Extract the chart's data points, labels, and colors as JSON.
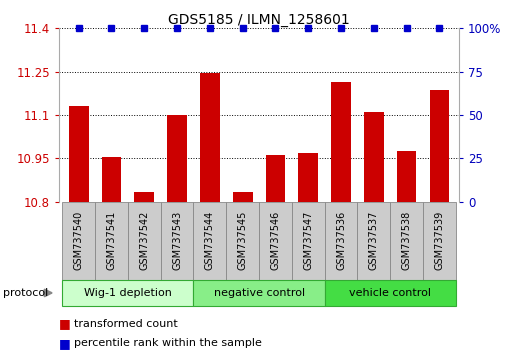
{
  "title": "GDS5185 / ILMN_1258601",
  "samples": [
    "GSM737540",
    "GSM737541",
    "GSM737542",
    "GSM737543",
    "GSM737544",
    "GSM737545",
    "GSM737546",
    "GSM737547",
    "GSM737536",
    "GSM737537",
    "GSM737538",
    "GSM737539"
  ],
  "bar_values": [
    11.13,
    10.955,
    10.835,
    11.1,
    11.245,
    10.835,
    10.962,
    10.968,
    11.215,
    11.11,
    10.975,
    11.185
  ],
  "percentile_values": [
    100,
    100,
    100,
    100,
    100,
    100,
    100,
    100,
    100,
    100,
    100,
    100
  ],
  "bar_color": "#cc0000",
  "percentile_color": "#0000cc",
  "ylim": [
    10.8,
    11.4
  ],
  "ylim_right": [
    0,
    100
  ],
  "yticks_left": [
    10.8,
    10.95,
    11.1,
    11.25,
    11.4
  ],
  "yticks_right": [
    0,
    25,
    50,
    75,
    100
  ],
  "groups": [
    {
      "label": "Wig-1 depletion",
      "start": 0,
      "end": 4,
      "color": "#ccffcc"
    },
    {
      "label": "negative control",
      "start": 4,
      "end": 8,
      "color": "#88ee88"
    },
    {
      "label": "vehicle control",
      "start": 8,
      "end": 12,
      "color": "#44dd44"
    }
  ],
  "legend": [
    {
      "label": "transformed count",
      "color": "#cc0000"
    },
    {
      "label": "percentile rank within the sample",
      "color": "#0000cc"
    }
  ],
  "protocol_label": "protocol",
  "background_color": "#ffffff",
  "tick_label_color_left": "#cc0000",
  "tick_label_color_right": "#0000bb",
  "sample_box_color": "#cccccc",
  "sample_box_edge": "#888888"
}
